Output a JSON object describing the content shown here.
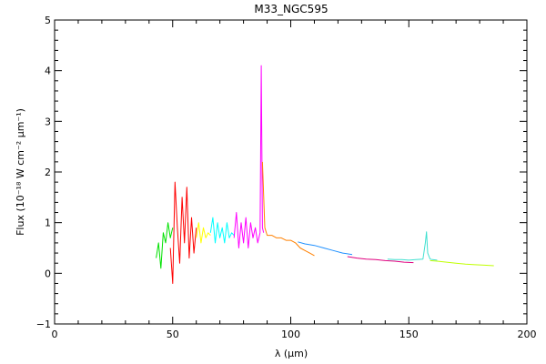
{
  "chart_data": {
    "type": "line",
    "title": "M33_NGC595",
    "xlabel": "λ (μm)",
    "ylabel": "Flux (10⁻¹⁸ W cm⁻² μm⁻¹)",
    "xlim": [
      0,
      200
    ],
    "ylim": [
      -1,
      5
    ],
    "x_ticks": [
      0,
      50,
      100,
      150,
      200
    ],
    "y_ticks": [
      -1,
      0,
      1,
      2,
      3,
      4,
      5
    ],
    "grid": false,
    "segments": [
      {
        "color": "#00e000",
        "x": [
          43,
          44,
          45,
          46,
          47,
          48,
          49,
          50
        ],
        "y": [
          0.3,
          0.6,
          0.1,
          0.8,
          0.6,
          1.0,
          0.7,
          0.9
        ]
      },
      {
        "color": "#ff0000",
        "x": [
          49,
          50,
          51,
          52,
          53,
          54,
          55,
          56,
          57,
          58,
          59,
          60
        ],
        "y": [
          0.5,
          -0.2,
          1.8,
          0.9,
          0.2,
          1.5,
          0.6,
          1.7,
          0.3,
          1.1,
          0.4,
          0.9
        ]
      },
      {
        "color": "#ffff00",
        "x": [
          60,
          61,
          62,
          63,
          64,
          65,
          66
        ],
        "y": [
          0.7,
          1.0,
          0.6,
          0.9,
          0.7,
          0.8,
          0.75
        ]
      },
      {
        "color": "#00ffff",
        "x": [
          66,
          67,
          68,
          69,
          70,
          71,
          72,
          73,
          74,
          75,
          76
        ],
        "y": [
          0.8,
          1.1,
          0.6,
          1.0,
          0.7,
          0.9,
          0.6,
          1.0,
          0.7,
          0.8,
          0.75
        ]
      },
      {
        "color": "#ff00ff",
        "x": [
          76,
          77,
          78,
          79,
          80,
          81,
          82,
          83,
          84,
          85,
          86,
          87,
          87.5,
          88,
          88.5
        ],
        "y": [
          0.7,
          1.2,
          0.5,
          1.0,
          0.6,
          1.1,
          0.5,
          1.0,
          0.7,
          0.9,
          0.6,
          0.8,
          4.1,
          0.9,
          0.8
        ]
      },
      {
        "color": "#ff8000",
        "x": [
          88,
          89,
          90,
          92,
          94,
          96,
          98,
          100,
          102,
          104,
          106,
          108,
          110
        ],
        "y": [
          2.2,
          0.9,
          0.75,
          0.75,
          0.7,
          0.7,
          0.65,
          0.65,
          0.6,
          0.5,
          0.45,
          0.4,
          0.35
        ]
      },
      {
        "color": "#1e90ff",
        "x": [
          103,
          106,
          110,
          114,
          118,
          122,
          126
        ],
        "y": [
          0.62,
          0.58,
          0.55,
          0.5,
          0.45,
          0.4,
          0.37
        ]
      },
      {
        "color": "#e0007f",
        "x": [
          124,
          128,
          132,
          136,
          140,
          144,
          148,
          152
        ],
        "y": [
          0.33,
          0.3,
          0.28,
          0.27,
          0.25,
          0.24,
          0.22,
          0.21
        ]
      },
      {
        "color": "#40e0d0",
        "x": [
          141,
          144,
          147,
          150,
          153,
          156,
          157,
          157.5,
          158,
          159,
          160,
          162
        ],
        "y": [
          0.28,
          0.27,
          0.27,
          0.26,
          0.27,
          0.28,
          0.6,
          0.82,
          0.4,
          0.28,
          0.27,
          0.26
        ]
      },
      {
        "color": "#c0ff00",
        "x": [
          159,
          162,
          166,
          170,
          174,
          178,
          182,
          186
        ],
        "y": [
          0.25,
          0.24,
          0.22,
          0.2,
          0.18,
          0.17,
          0.16,
          0.15
        ]
      }
    ]
  }
}
